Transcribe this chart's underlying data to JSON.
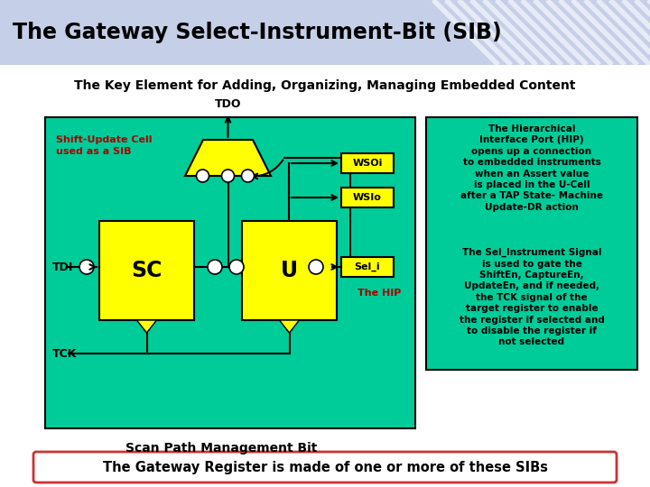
{
  "title": "The Gateway Select-Instrument-Bit (SIB)",
  "subtitle": "The Key Element for Adding, Organizing, Managing Embedded Content",
  "bg_color": "#ffffff",
  "header_bg": "#c5cfe8",
  "teal_bg": "#00cc99",
  "yellow_fill": "#ffff00",
  "black": "#000000",
  "red_label": "#aa0000",
  "bottom_box_border": "#cc3333",
  "bottom_text": "The Gateway Register is made of one or more of these SIBs",
  "scan_path_text": "Scan Path Management Bit",
  "shift_update_text": "Shift-Update Cell\nused as a SIB",
  "hip_text1": "The Hierarchical\nInterface Port (HIP)\nopens up a connection\nto embedded instruments\nwhen an Assert value\nis placed in the U-Cell\nafter a TAP State- Machine\nUpdate-DR action",
  "hip_text2": "The Sel_Instrument Signal\nis used to gate the\nShiftEn, CaptureEn,\nUpdateEn, and if needed,\nthe TCK signal of the\ntarget register to enable\nthe register if selected and\nto disable the register if\nnot selected"
}
